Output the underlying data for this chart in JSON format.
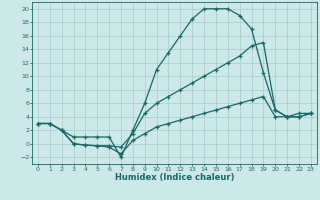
{
  "title": "",
  "xlabel": "Humidex (Indice chaleur)",
  "bg_color": "#cce8e8",
  "grid_color": "#aed0d0",
  "line_color": "#1a6666",
  "xlim": [
    -0.5,
    23.5
  ],
  "ylim": [
    -3,
    21
  ],
  "xticks": [
    0,
    1,
    2,
    3,
    4,
    5,
    6,
    7,
    8,
    9,
    10,
    11,
    12,
    13,
    14,
    15,
    16,
    17,
    18,
    19,
    20,
    21,
    22,
    23
  ],
  "yticks": [
    -2,
    0,
    2,
    4,
    6,
    8,
    10,
    12,
    14,
    16,
    18,
    20
  ],
  "line1_x": [
    0,
    1,
    2,
    3,
    4,
    5,
    6,
    7,
    8,
    9,
    10,
    11,
    12,
    13,
    14,
    15,
    16,
    17,
    18,
    19,
    20,
    21,
    22,
    23
  ],
  "line1_y": [
    3.0,
    3.0,
    2.0,
    1.0,
    1.0,
    1.0,
    1.0,
    -2.0,
    2.0,
    6.0,
    11.0,
    13.5,
    16.0,
    18.5,
    20.0,
    20.0,
    20.0,
    19.0,
    17.0,
    10.5,
    5.0,
    4.0,
    4.5,
    4.5
  ],
  "line2_x": [
    0,
    1,
    2,
    3,
    4,
    5,
    6,
    7,
    8,
    9,
    10,
    11,
    12,
    13,
    14,
    15,
    16,
    17,
    18,
    19,
    20,
    21,
    22,
    23
  ],
  "line2_y": [
    3.0,
    3.0,
    2.0,
    0.0,
    -0.2,
    -0.3,
    -0.3,
    -0.5,
    1.5,
    4.5,
    6.0,
    7.0,
    8.0,
    9.0,
    10.0,
    11.0,
    12.0,
    13.0,
    14.5,
    15.0,
    5.0,
    4.0,
    4.0,
    4.5
  ],
  "line3_x": [
    0,
    1,
    2,
    3,
    4,
    5,
    6,
    7,
    8,
    9,
    10,
    11,
    12,
    13,
    14,
    15,
    16,
    17,
    18,
    19,
    20,
    21,
    22,
    23
  ],
  "line3_y": [
    3.0,
    3.0,
    2.0,
    0.0,
    -0.2,
    -0.3,
    -0.5,
    -1.5,
    0.5,
    1.5,
    2.5,
    3.0,
    3.5,
    4.0,
    4.5,
    5.0,
    5.5,
    6.0,
    6.5,
    7.0,
    4.0,
    4.0,
    4.0,
    4.5
  ]
}
